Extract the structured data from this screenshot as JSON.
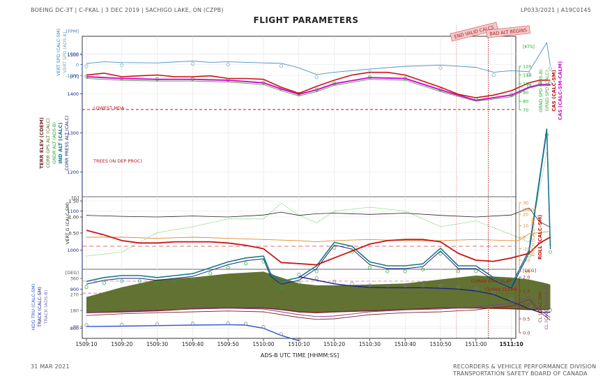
{
  "header": {
    "left": "BOEING DC-3T | C-FKAL | 3 DEC 2019 | SACHIGO LAKE, ON (CZPB)",
    "right": "LP033/2021 | A19C0145",
    "title": "FLIGHT PARAMETERS"
  },
  "footer": {
    "date": "31 MAR 2021",
    "org_line1": "RECORDERS & VEHICLE PERFORMANCE DIVISION",
    "org_line2": "TRANSPORTATION SAFETY BOARD OF CANADA"
  },
  "colors": {
    "black": "#222222",
    "red": "#cc1111",
    "magenta": "#d010d0",
    "green": "#22aa22",
    "teal": "#157a8c",
    "blue": "#3355cc",
    "navy": "#1a237e",
    "olive": "#5a6a28",
    "brown": "#7a2e2e",
    "orange": "#e08a2a",
    "lightblue": "#4c90c0",
    "dashred": "#e05a5a"
  },
  "chart_data": {
    "type": "line",
    "xlabel": "ADS-B UTC TIME [HHMM:SS]",
    "x_ticks": [
      "1509:10",
      "1509:20",
      "1509:30",
      "1509:40",
      "1509:50",
      "1510:00",
      "1510:10",
      "1510:20",
      "1510:30",
      "1510:40",
      "1510:50",
      "1511:00",
      "1511:10"
    ],
    "annotations": {
      "end_valid_calcs": "END VALID CALCS",
      "bad_alt_begins": "BAD ALT BEGINS",
      "lowest_mda": "LOWEST MDA",
      "trees": "TREES (IN DEP PROC)",
      "clmax_full_flap": "CLMAX FULL FLAP",
      "clmax_clean": "CLMAX CLEAN"
    },
    "panels": {
      "vert_spd": {
        "unit": "[FPM]",
        "ticks": [
          "1000",
          "0",
          "-1000"
        ],
        "labels": [
          "VERT SPD (CALC-SM)",
          "VERT SPD (ADS-B)"
        ]
      },
      "altitude": {
        "unit": "[FT]",
        "ticks": [
          "1500",
          "1400",
          "1300",
          "1200",
          "1100",
          "1000",
          "900",
          "800"
        ],
        "labels": [
          "TERR ELEV (CDEM)",
          "CORR GPS ALT (CALC)",
          "GNDR ALT (ADS-B)",
          "IND ALT (CALC)",
          "CORR PRESS ALT (CALC)"
        ]
      },
      "speed": {
        "unit": "[KTS]",
        "ticks": [
          "120",
          "110",
          "100",
          "90",
          "80",
          "70"
        ],
        "labels": [
          "GRND SPD (ADS-B)",
          "GRND SPD (CALC)",
          "CAS (CALC-SM)",
          "CAS (CALC-SM-CALM)"
        ]
      },
      "vert_g": {
        "unit": "[G]",
        "ticks": [
          "1.50",
          "1.00",
          "0.50"
        ],
        "labels": [
          "VERT G (CALC-SM)"
        ]
      },
      "attitude": {
        "unit": "[DEG]",
        "ticks": [
          "30",
          "20",
          "10",
          "0",
          "-10",
          "-20",
          "-30"
        ],
        "labels": [
          "PITCH (CALC-SM)",
          "ROLL (CALC-SM)"
        ]
      },
      "heading": {
        "unit": "[DEG]",
        "ticks": [
          "360",
          "270",
          "180",
          "90"
        ],
        "labels": [
          "HDG TRU (CALC-SM)",
          "TRACK (CALC-SM)",
          "TRACK (ADS-B)"
        ]
      },
      "cl": {
        "unit": "[DEG]",
        "ticks": [
          "2.0",
          "1.5",
          "1.0",
          "0.5",
          "0.0"
        ],
        "labels": [
          "CL (CALC-SM)",
          "CL (CALC-SM-CALM)"
        ]
      }
    },
    "series": [
      {
        "name": "VERT SPD (CALC-SM)",
        "t": [
          0,
          5,
          10,
          20,
          30,
          35,
          40,
          50,
          55,
          60,
          65,
          70,
          80,
          90,
          100,
          110,
          115,
          120,
          125,
          130,
          131
        ],
        "values": [
          100,
          250,
          180,
          150,
          320,
          200,
          250,
          150,
          120,
          -300,
          -900,
          -700,
          -400,
          -150,
          -50,
          -250,
          -700,
          -550,
          -650,
          2000,
          -100
        ]
      },
      {
        "name": "TERR ELEV (CDEM)",
        "t": [
          0,
          10,
          20,
          30,
          40,
          50,
          55,
          60,
          65,
          70,
          80,
          90,
          100,
          110,
          120,
          125,
          130,
          131
        ],
        "values": [
          840,
          842,
          845,
          850,
          852,
          852,
          848,
          842,
          840,
          842,
          845,
          848,
          852,
          852,
          850,
          848,
          848,
          850
        ]
      },
      {
        "name": "TREES (IN DEP PROC)",
        "t": [
          0,
          10,
          20,
          30,
          40,
          50,
          55,
          60,
          65,
          70,
          80,
          90,
          100,
          110,
          120,
          125,
          130,
          131
        ],
        "values": [
          880,
          905,
          925,
          930,
          940,
          945,
          930,
          915,
          910,
          910,
          912,
          915,
          925,
          935,
          930,
          925,
          915,
          912
        ]
      },
      {
        "name": "IND ALT (CALC)",
        "t": [
          0,
          5,
          10,
          15,
          20,
          25,
          30,
          35,
          40,
          45,
          50,
          52,
          55,
          60,
          65,
          70,
          75,
          80,
          85,
          90,
          95,
          100,
          105,
          110,
          115,
          120,
          125,
          130,
          131
        ],
        "values": [
          920,
          930,
          935,
          935,
          930,
          935,
          940,
          955,
          970,
          980,
          985,
          940,
          920,
          930,
          960,
          1020,
          1010,
          970,
          960,
          960,
          965,
          1005,
          960,
          960,
          930,
          910,
          1000,
          1310,
          1010
        ]
      },
      {
        "name": "CORR GPS ALT (CALC)",
        "t": [
          0,
          10,
          20,
          30,
          40,
          50,
          55,
          60,
          65,
          70,
          80,
          90,
          100,
          110,
          120,
          125,
          130
        ],
        "values": [
          985,
          995,
          1045,
          1060,
          1080,
          1080,
          1120,
          1090,
          1070,
          1100,
          1110,
          1100,
          1060,
          1075,
          1040,
          1020,
          1250
        ]
      },
      {
        "name": "CAS (CALC-SM)",
        "t": [
          0,
          5,
          10,
          15,
          20,
          25,
          30,
          35,
          40,
          45,
          50,
          55,
          60,
          65,
          70,
          75,
          80,
          85,
          90,
          95,
          100,
          105,
          110,
          115,
          120,
          125,
          128,
          131
        ],
        "values": [
          110,
          112,
          108,
          109,
          110,
          108,
          108,
          109,
          106,
          106,
          105,
          96,
          89,
          97,
          104,
          110,
          113,
          113,
          110,
          103,
          96,
          88,
          84,
          87,
          92,
          101,
          104,
          104
        ]
      },
      {
        "name": "CAS (CALC-SM-CALM)",
        "t": [
          0,
          10,
          20,
          30,
          40,
          50,
          55,
          60,
          65,
          70,
          80,
          90,
          100,
          110,
          120,
          125,
          128,
          131
        ],
        "values": [
          108,
          106,
          105,
          105,
          104,
          101,
          94,
          88,
          93,
          100,
          107,
          106,
          93,
          81,
          87,
          96,
          99,
          99
        ]
      },
      {
        "name": "GRND SPD (CALC)",
        "t": [
          0,
          10,
          20,
          30,
          40,
          50,
          55,
          60,
          65,
          70,
          80,
          90,
          100,
          110,
          120,
          125,
          128,
          131
        ],
        "values": [
          106,
          104,
          103,
          103,
          102,
          99,
          92,
          86,
          91,
          98,
          105,
          104,
          91,
          80,
          85,
          95,
          98,
          98
        ]
      },
      {
        "name": "VERT G (CALC-SM)",
        "t": [
          0,
          10,
          20,
          30,
          40,
          50,
          55,
          60,
          65,
          70,
          80,
          90,
          100,
          110,
          120,
          125,
          128,
          131
        ],
        "values": [
          1.05,
          1.02,
          1.0,
          1.03,
          1.0,
          1.06,
          1.15,
          1.05,
          1.1,
          1.12,
          1.08,
          1.12,
          1.05,
          1.0,
          1.06,
          1.28,
          0.85,
          0.68
        ]
      },
      {
        "name": "PITCH (CALC-SM)",
        "t": [
          0,
          10,
          20,
          30,
          40,
          50,
          60,
          65,
          70,
          80,
          90,
          100,
          110,
          120,
          122,
          125,
          131
        ],
        "values": [
          0,
          0,
          -1,
          0,
          -1,
          -2,
          -3,
          -4,
          -3,
          -2,
          -3,
          -3,
          -2,
          -3,
          -3,
          3,
          5
        ]
      },
      {
        "name": "ROLL (CALC-SM)",
        "t": [
          0,
          5,
          10,
          15,
          20,
          25,
          30,
          35,
          40,
          45,
          50,
          55,
          60,
          65,
          70,
          75,
          80,
          85,
          90,
          95,
          100,
          105,
          110,
          115,
          120,
          125,
          128,
          131
        ],
        "values": [
          6,
          2,
          -3,
          -5,
          -5,
          -4,
          -4,
          -4,
          -5,
          -7,
          -10,
          -22,
          -23,
          -24,
          -18,
          -12,
          -6,
          -3,
          -2,
          -2,
          -4,
          -14,
          -20,
          -21,
          -18,
          -14,
          -5,
          0
        ]
      },
      {
        "name": "HDG TRU (CALC-SM)",
        "t": [
          0,
          10,
          20,
          30,
          40,
          45,
          50,
          55,
          60
        ],
        "values": [
          90,
          92,
          95,
          98,
          100,
          98,
          80,
          40,
          10
        ]
      },
      {
        "name": "TRACK (CALC-SM)",
        "t": [
          60,
          65,
          70,
          75,
          80,
          85,
          90,
          95,
          100,
          105,
          110,
          115,
          120,
          125,
          128,
          131
        ],
        "values": [
          370,
          350,
          330,
          318,
          310,
          308,
          308,
          308,
          305,
          300,
          290,
          270,
          230,
          190,
          170,
          170
        ]
      },
      {
        "name": "CL (CALC-SM)",
        "t": [
          0,
          10,
          20,
          30,
          40,
          50,
          55,
          60,
          65,
          70,
          80,
          90,
          100,
          110,
          115,
          120,
          125,
          128,
          131
        ],
        "values": [
          0.62,
          0.68,
          0.72,
          0.75,
          0.78,
          0.75,
          0.65,
          0.55,
          0.48,
          0.5,
          0.65,
          0.72,
          0.75,
          0.82,
          0.9,
          0.95,
          1.2,
          0.75,
          0.45
        ]
      },
      {
        "name": "CL (CALC-SM-CALM)",
        "t": [
          0,
          10,
          20,
          30,
          40,
          50,
          55,
          60,
          65,
          70,
          80,
          90,
          100,
          110,
          115,
          120,
          125,
          128,
          131
        ],
        "values": [
          0.72,
          0.78,
          0.82,
          0.85,
          0.88,
          0.85,
          0.75,
          0.65,
          0.58,
          0.6,
          0.75,
          0.82,
          0.85,
          0.92,
          1.0,
          1.05,
          1.3,
          0.82,
          0.55
        ]
      }
    ]
  }
}
